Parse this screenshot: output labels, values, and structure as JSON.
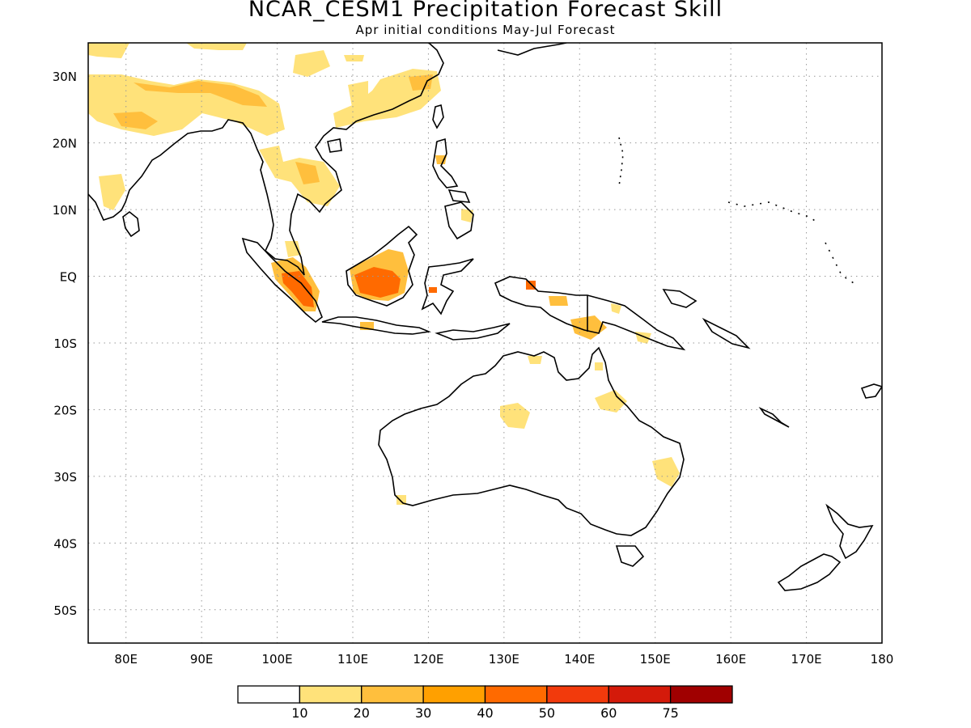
{
  "title": "NCAR_CESM1 Precipitation Forecast Skill",
  "subtitle": "Apr initial conditions  May-Jul Forecast",
  "map": {
    "lon_range": [
      75,
      180
    ],
    "lat_range": [
      -55,
      35
    ],
    "lon_ticks": [
      "80E",
      "90E",
      "100E",
      "110E",
      "120E",
      "130E",
      "140E",
      "150E",
      "160E",
      "170E",
      "180"
    ],
    "lat_ticks": [
      "30N",
      "20N",
      "10N",
      "EQ",
      "10S",
      "20S",
      "30S",
      "40S",
      "50S"
    ],
    "grid": "dotted"
  },
  "colorbar": {
    "labels": [
      "10",
      "20",
      "30",
      "40",
      "50",
      "60",
      "75"
    ],
    "colors": [
      "#ffffff",
      "#ffe27a",
      "#ffbf3d",
      "#ffa000",
      "#ff6a00",
      "#f23a0c",
      "#d41a0a",
      "#a00000"
    ]
  }
}
